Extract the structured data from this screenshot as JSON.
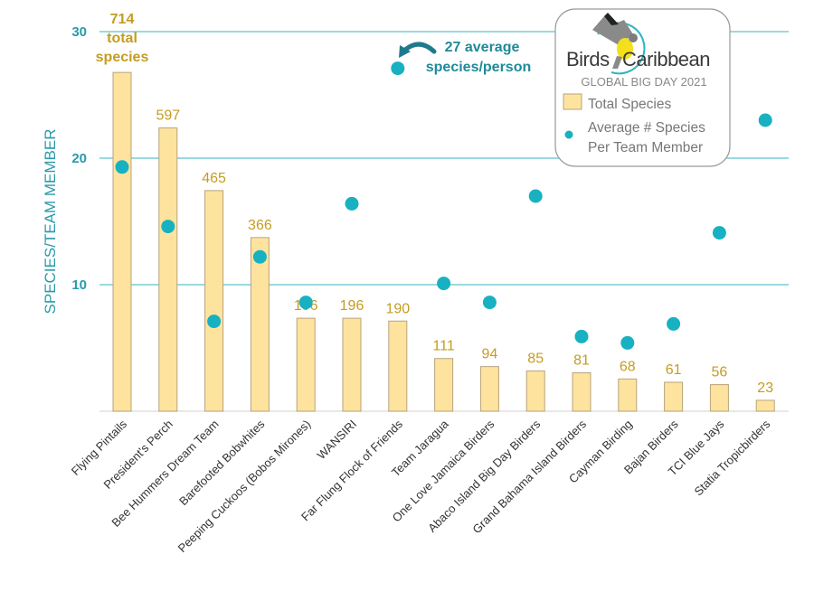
{
  "chart_data": {
    "type": "bar",
    "title": "",
    "xlabel": "",
    "ylabel": "SPECIES/TEAM MEMBER",
    "ylim": [
      0,
      30
    ],
    "yticks": [
      10,
      20,
      30
    ],
    "bar_axis_max": 800,
    "grid": true,
    "categories": [
      "Flying Pintails",
      "President's Perch",
      "Bee Hummers Dream Team",
      "Barefooted Bobwhites",
      "Peeping Cuckoos (Bobos Mirones)",
      "WANSIRI",
      "Far Flung Flock of Friends",
      "Team Jaragua",
      "One Love Jamaica Birders",
      "Abaco Island Big Day Birders",
      "Grand Bahama Island Birders",
      "Cayman Birding",
      "Bajan Birders",
      "TCI Blue Jays",
      "Statia Tropicbirders"
    ],
    "series": [
      {
        "name": "Total Species",
        "type": "bar",
        "values": [
          714,
          597,
          465,
          366,
          196,
          196,
          190,
          111,
          94,
          85,
          81,
          68,
          61,
          56,
          23
        ],
        "labels": [
          "714",
          "597",
          "465",
          "366",
          "196",
          "196",
          "190",
          "111",
          "94",
          "85",
          "81",
          "68",
          "61",
          "56",
          "23"
        ]
      },
      {
        "name": "Average # Species Per Team Member",
        "type": "scatter",
        "values": [
          19.3,
          14.6,
          7.1,
          12.2,
          8.6,
          16.4,
          27.1,
          10.1,
          8.6,
          17.0,
          5.9,
          5.4,
          6.9,
          14.1,
          23.0
        ]
      }
    ],
    "first_bar_label_lines": [
      "714",
      "total",
      "species"
    ],
    "annotation": {
      "lines": [
        "27 average",
        "species/person"
      ],
      "target_category": "Far Flung Flock of Friends"
    },
    "legend": {
      "placement": "top-right",
      "brand_left": "Birds",
      "brand_right": "Caribbean",
      "subtitle": "GLOBAL BIG DAY 2021",
      "items": [
        {
          "label": "Total Species",
          "swatch": "bar"
        },
        {
          "label_lines": [
            "Average # Species",
            "Per Team Member"
          ],
          "swatch": "dot"
        }
      ]
    },
    "colors": {
      "bar_fill": "#fde39e",
      "bar_stroke": "#b9a37c",
      "dot": "#18b1c1",
      "value_label": "#c59c21",
      "axis": "#2a9aaa",
      "grid": "#5cc4cf",
      "annotation": "#1f8a99"
    }
  }
}
